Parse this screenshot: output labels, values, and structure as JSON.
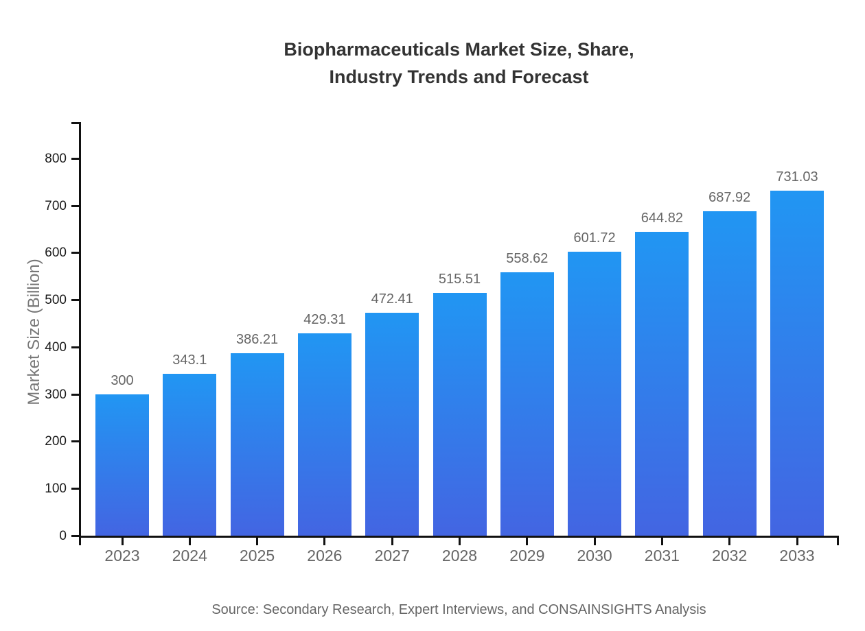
{
  "chart_data": {
    "type": "bar",
    "title_lines": [
      "Biopharmaceuticals Market Size, Share,",
      "Industry Trends and Forecast"
    ],
    "categories": [
      "2023",
      "2024",
      "2025",
      "2026",
      "2027",
      "2028",
      "2029",
      "2030",
      "2031",
      "2032",
      "2033"
    ],
    "values": [
      300,
      343.1,
      386.21,
      429.31,
      472.41,
      515.51,
      558.62,
      601.72,
      644.82,
      687.92,
      731.03
    ],
    "value_labels": [
      "300",
      "343.1",
      "386.21",
      "429.31",
      "472.41",
      "515.51",
      "558.62",
      "601.72",
      "644.82",
      "687.92",
      "731.03"
    ],
    "xlabel": "",
    "ylabel": "Market Size (Billion)",
    "y_ticks": [
      0,
      100,
      200,
      300,
      400,
      500,
      600,
      700,
      800
    ],
    "ylim": [
      0,
      877
    ],
    "grid": false,
    "legend": "none",
    "source": "Source: Secondary Research, Expert Interviews, and CONSAINSIGHTS Analysis",
    "colors": {
      "bar_gradient_top": "#2196f3",
      "bar_gradient_bottom": "#4365e2",
      "axis": "#111111",
      "tick_label": "#1a1a1a",
      "category_label": "#666666",
      "value_label": "#666666",
      "title": "#333333",
      "axis_title": "#777777",
      "source": "#666666",
      "background": "#ffffff"
    }
  }
}
